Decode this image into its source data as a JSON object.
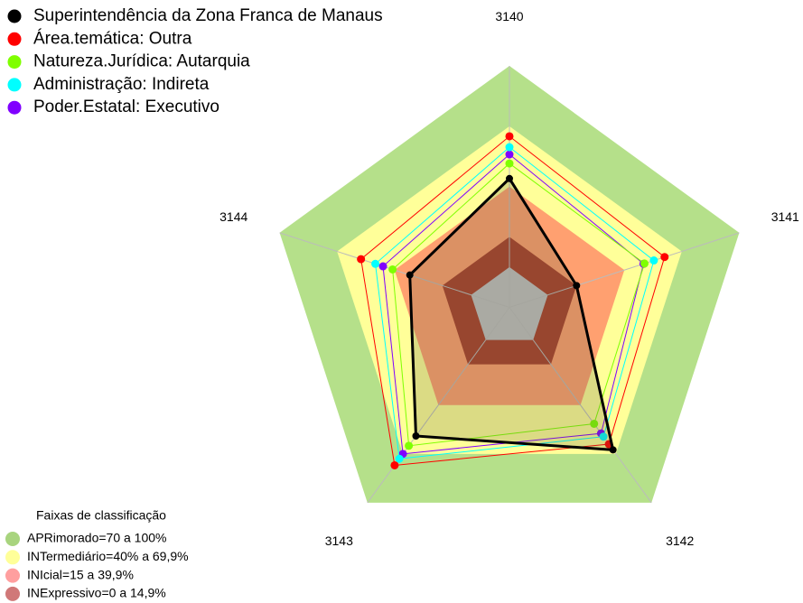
{
  "chart_data": {
    "type": "radar",
    "categories": [
      "3140",
      "3141",
      "3142",
      "3143",
      "3144"
    ],
    "rlim": [
      0,
      100
    ],
    "series": [
      {
        "name": "Superintendência da Zona Franca de Manaus",
        "color": "#000000",
        "values": [
          44,
          15,
          67.5,
          59,
          32
        ]
      },
      {
        "name": "Área.temática: Outra",
        "color": "#ff0000",
        "values": [
          65,
          61,
          64,
          77,
          57.5
        ]
      },
      {
        "name": "Natureza.Jurídica: Autarquia",
        "color": "#7fff00",
        "values": [
          51.5,
          50.5,
          51.5,
          65,
          41
        ]
      },
      {
        "name": "Administração: Indireta",
        "color": "#00ffff",
        "values": [
          59.6,
          55.4,
          59.4,
          73,
          50
        ]
      },
      {
        "name": "Poder.Estatal: Executivo",
        "color": "#8000ff",
        "values": [
          56,
          50,
          57.4,
          70,
          46
        ]
      }
    ],
    "bands_title": "Faixas de classificação",
    "bands": [
      {
        "label": "APRimorado=70 a 100%",
        "value": 100,
        "color": "#b5e08a",
        "legend_color": "#a8d47e"
      },
      {
        "label": "INTermediário=40% a 69,9%",
        "value": 70,
        "color": "#ffff99",
        "legend_color": "#ffff99"
      },
      {
        "label": "INIcial=15 a 39,9%",
        "value": 40,
        "color": "#ffa070",
        "legend_color": "#ff9f9f"
      },
      {
        "label": "INExpressivo=0 a 14,9%",
        "value": 15,
        "color": "#a9402c",
        "legend_color": "#d07878"
      }
    ]
  }
}
